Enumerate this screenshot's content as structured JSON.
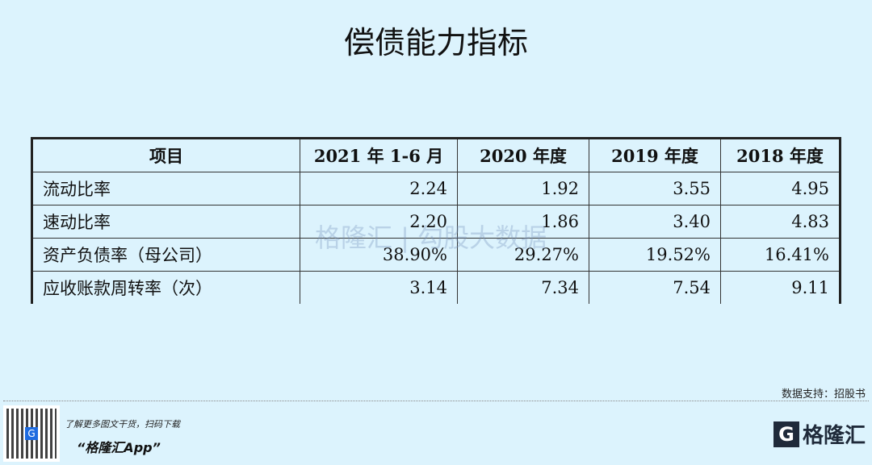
{
  "title": "偿债能力指标",
  "table": {
    "headers": [
      "项目",
      "2021 年 1-6 月",
      "2020 年度",
      "2019 年度",
      "2018 年度"
    ],
    "rows": [
      [
        "流动比率",
        "2.24",
        "1.92",
        "3.55",
        "4.95"
      ],
      [
        "速动比率",
        "2.20",
        "1.86",
        "3.40",
        "4.83"
      ],
      [
        "资产负债率（母公司）",
        "38.90%",
        "29.27%",
        "19.52%",
        "16.41%"
      ],
      [
        "应收账款周转率（次）",
        "3.14",
        "7.34",
        "7.54",
        "9.11"
      ]
    ]
  },
  "watermark": "格隆汇 | 勾股大数据",
  "source": "数据支持：招股书",
  "footer": {
    "promo_line": "了解更多图文干货，扫码下载",
    "app_name": "“格隆汇App”",
    "logo_text": "格隆汇"
  }
}
